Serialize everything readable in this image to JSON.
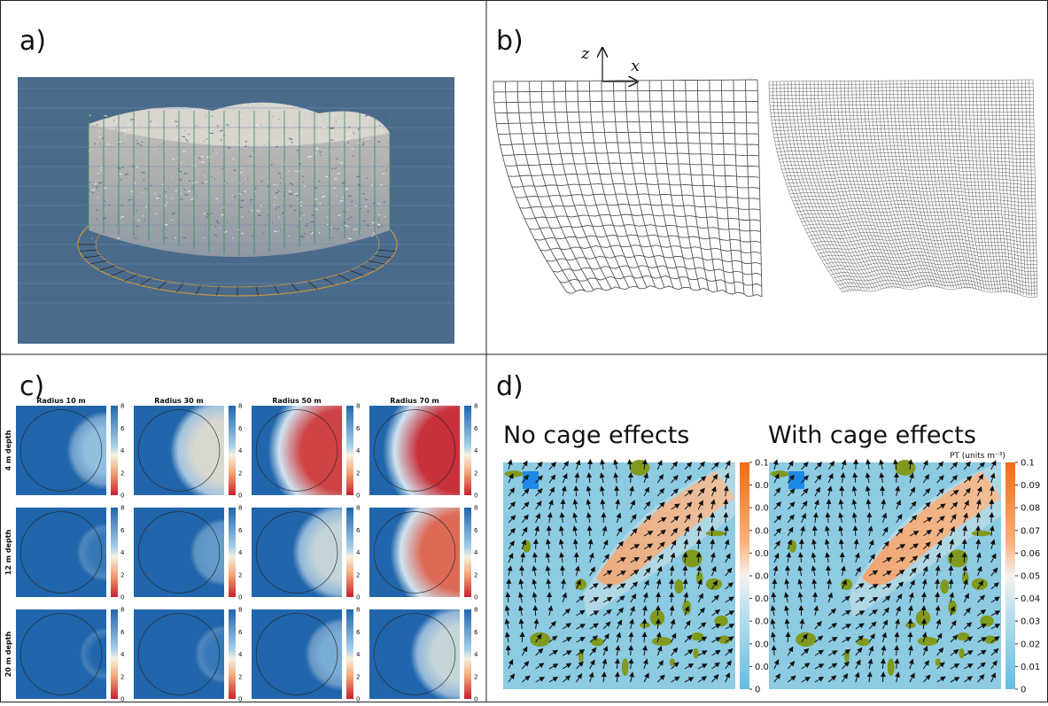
{
  "panels": {
    "a": {
      "label": "a)"
    },
    "b": {
      "label": "b)",
      "axes": {
        "z": "z",
        "x": "x"
      }
    },
    "c": {
      "label": "c)",
      "columns": [
        "Radius 10 m",
        "Radius 30 m",
        "Radius 50 m",
        "Radius 70 m"
      ],
      "rows": [
        "4 m depth",
        "12 m depth",
        "20 m depth"
      ],
      "colorbar_ticks": [
        0,
        2,
        4,
        6,
        8
      ]
    },
    "d": {
      "label": "d)",
      "maps": [
        "No cage effects",
        "With cage effects"
      ],
      "colorbar_title": "PT (units m⁻³)",
      "colorbar_ticks": [
        0.1,
        0.09,
        0.08,
        0.07,
        0.06,
        0.05,
        0.04,
        0.03,
        0.02,
        0.01,
        0
      ]
    }
  }
}
